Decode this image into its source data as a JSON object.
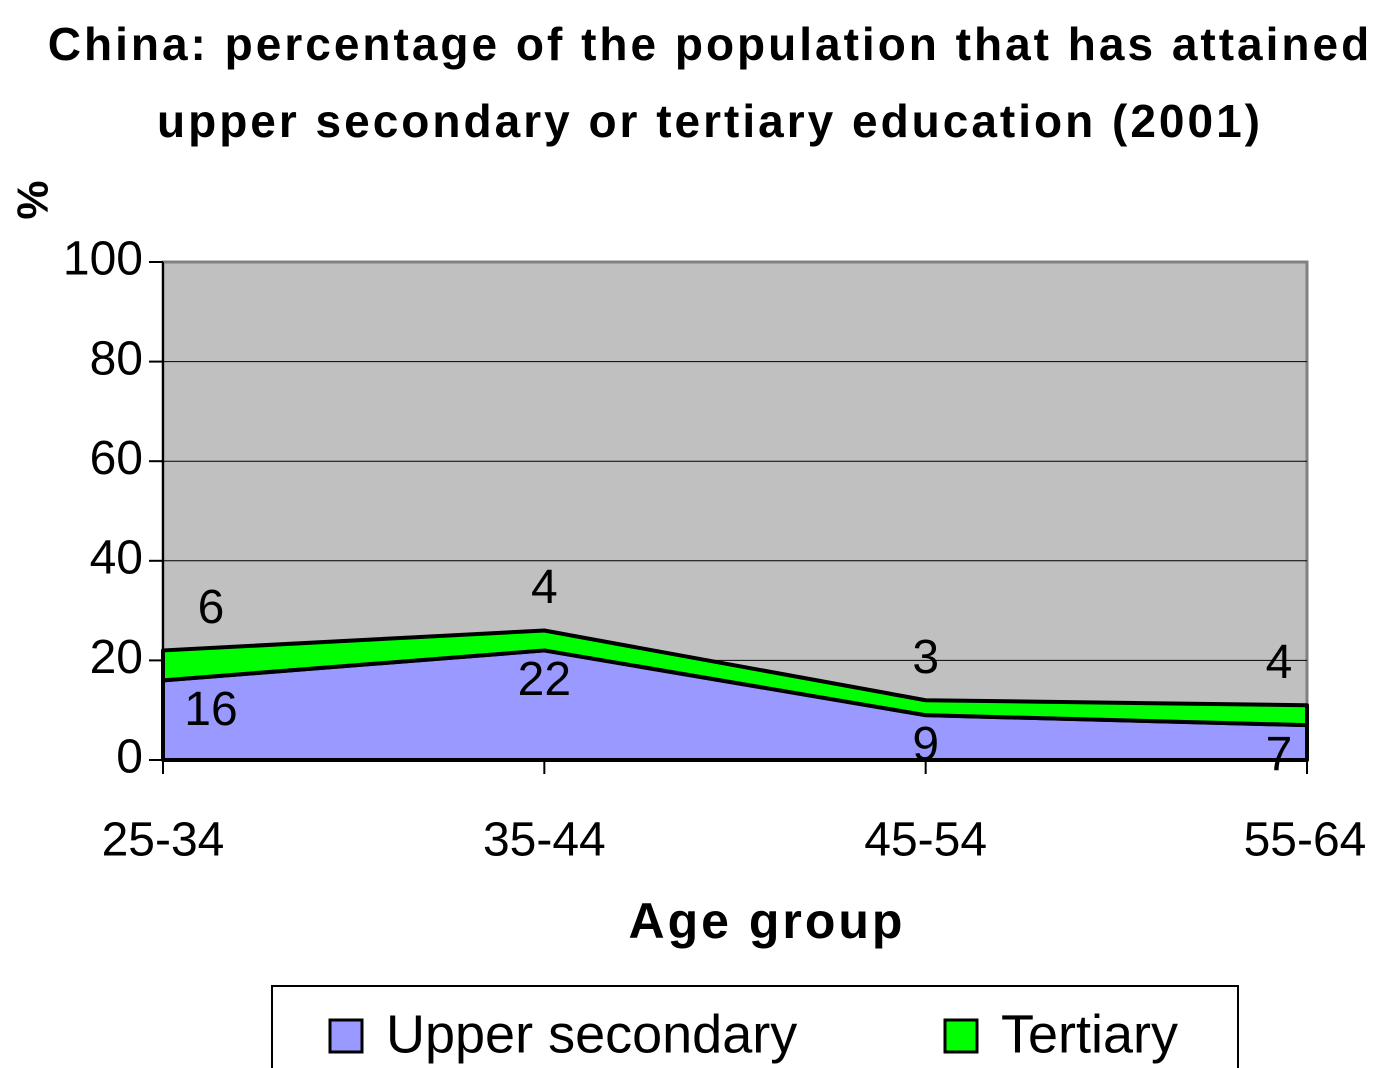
{
  "chart_data": {
    "type": "area",
    "title": "China: percentage of the population that has attained upper secondary or tertiary education (2001)",
    "x_label": "Age group",
    "y_label": "%",
    "categories": [
      "25-34",
      "35-44",
      "45-54",
      "55-64"
    ],
    "series": [
      {
        "name": "Upper secondary",
        "color": "#9999ff",
        "values": [
          16,
          22,
          9,
          7
        ]
      },
      {
        "name": "Tertiary",
        "color": "#00ff00",
        "values": [
          6,
          4,
          3,
          4
        ]
      }
    ],
    "stacked": true,
    "ylim": [
      0,
      100
    ],
    "yticks": [
      0,
      20,
      40,
      60,
      80,
      100
    ],
    "grid": true,
    "plot_background": "#c0c0c0",
    "legend": "bottom"
  }
}
